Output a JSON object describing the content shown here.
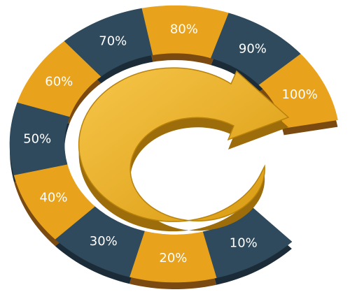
{
  "segments": [
    {
      "label": "10%"
    },
    {
      "label": "20%"
    },
    {
      "label": "30%"
    },
    {
      "label": "40%"
    },
    {
      "label": "50%"
    },
    {
      "label": "60%"
    },
    {
      "label": "70%"
    },
    {
      "label": "80%"
    },
    {
      "label": "90%"
    },
    {
      "label": "100%"
    }
  ]
}
